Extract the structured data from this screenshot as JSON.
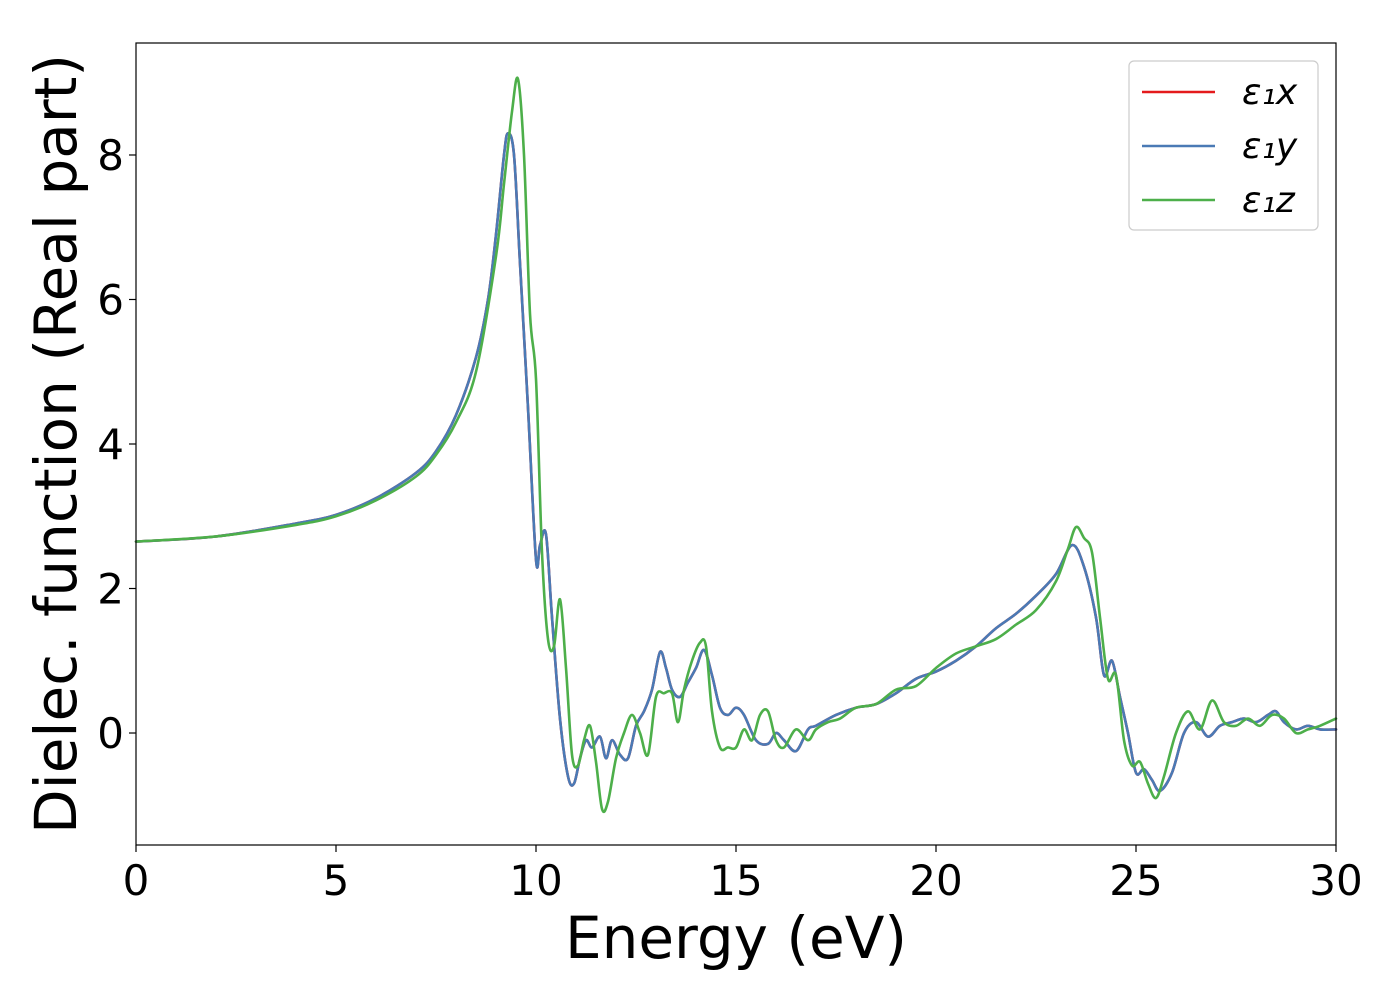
{
  "chart_data": {
    "type": "line",
    "title": "",
    "xlabel": "Energy (eV)",
    "ylabel": "Dielec. function (Real part)",
    "xlim": [
      0,
      30
    ],
    "ylim": [
      -1.55,
      9.55
    ],
    "xticks": [
      0,
      5,
      10,
      15,
      20,
      25,
      30
    ],
    "yticks": [
      0,
      2,
      4,
      6,
      8
    ],
    "grid": false,
    "legend_position": "top-right",
    "series": [
      {
        "name": "ε₁x",
        "color": "#e41a1c",
        "x": [
          0,
          2,
          4,
          5,
          6,
          7,
          7.5,
          8,
          8.5,
          8.8,
          9.0,
          9.2,
          9.3,
          9.45,
          9.6,
          9.8,
          10.0,
          10.1,
          10.25,
          10.4,
          10.6,
          10.8,
          10.95,
          11.1,
          11.25,
          11.4,
          11.6,
          11.75,
          11.9,
          12.1,
          12.3,
          12.5,
          12.7,
          12.9,
          13.1,
          13.25,
          13.4,
          13.6,
          13.8,
          14.0,
          14.2,
          14.4,
          14.6,
          14.8,
          15.0,
          15.2,
          15.5,
          15.8,
          16.0,
          16.2,
          16.5,
          16.8,
          17.0,
          17.5,
          18.0,
          18.5,
          19.0,
          19.5,
          20.0,
          20.5,
          21.0,
          21.5,
          22.0,
          22.5,
          23.0,
          23.4,
          23.7,
          24.0,
          24.2,
          24.4,
          24.6,
          24.8,
          25.0,
          25.2,
          25.4,
          25.6,
          25.9,
          26.2,
          26.5,
          26.8,
          27.1,
          27.4,
          27.7,
          28.0,
          28.3,
          28.5,
          28.7,
          29.0,
          29.3,
          29.6,
          30.0
        ],
        "y": [
          2.65,
          2.72,
          2.9,
          3.02,
          3.25,
          3.6,
          3.9,
          4.4,
          5.2,
          6.0,
          6.9,
          8.0,
          8.3,
          8.0,
          6.5,
          4.5,
          2.4,
          2.6,
          2.75,
          1.6,
          0.2,
          -0.6,
          -0.7,
          -0.35,
          -0.1,
          -0.2,
          -0.05,
          -0.35,
          -0.1,
          -0.3,
          -0.35,
          0.1,
          0.3,
          0.6,
          1.12,
          0.9,
          0.6,
          0.5,
          0.7,
          0.9,
          1.15,
          0.8,
          0.35,
          0.25,
          0.35,
          0.25,
          -0.1,
          -0.15,
          0.0,
          -0.1,
          -0.25,
          0.05,
          0.1,
          0.25,
          0.35,
          0.4,
          0.55,
          0.75,
          0.85,
          1.0,
          1.2,
          1.45,
          1.65,
          1.9,
          2.2,
          2.6,
          2.3,
          1.6,
          0.8,
          1.0,
          0.5,
          0.0,
          -0.55,
          -0.5,
          -0.65,
          -0.8,
          -0.55,
          0.0,
          0.15,
          -0.05,
          0.1,
          0.15,
          0.2,
          0.15,
          0.25,
          0.3,
          0.15,
          0.05,
          0.1,
          0.05,
          0.05
        ]
      },
      {
        "name": "ε₁y",
        "color": "#4a7ab5",
        "x": [
          0,
          2,
          4,
          5,
          6,
          7,
          7.5,
          8,
          8.5,
          8.8,
          9.0,
          9.2,
          9.3,
          9.45,
          9.6,
          9.8,
          10.0,
          10.1,
          10.25,
          10.4,
          10.6,
          10.8,
          10.95,
          11.1,
          11.25,
          11.4,
          11.6,
          11.75,
          11.9,
          12.1,
          12.3,
          12.5,
          12.7,
          12.9,
          13.1,
          13.25,
          13.4,
          13.6,
          13.8,
          14.0,
          14.2,
          14.4,
          14.6,
          14.8,
          15.0,
          15.2,
          15.5,
          15.8,
          16.0,
          16.2,
          16.5,
          16.8,
          17.0,
          17.5,
          18.0,
          18.5,
          19.0,
          19.5,
          20.0,
          20.5,
          21.0,
          21.5,
          22.0,
          22.5,
          23.0,
          23.4,
          23.7,
          24.0,
          24.2,
          24.4,
          24.6,
          24.8,
          25.0,
          25.2,
          25.4,
          25.6,
          25.9,
          26.2,
          26.5,
          26.8,
          27.1,
          27.4,
          27.7,
          28.0,
          28.3,
          28.5,
          28.7,
          29.0,
          29.3,
          29.6,
          30.0
        ],
        "y": [
          2.65,
          2.72,
          2.9,
          3.02,
          3.25,
          3.6,
          3.9,
          4.4,
          5.2,
          6.0,
          6.9,
          8.0,
          8.3,
          8.0,
          6.5,
          4.5,
          2.4,
          2.6,
          2.75,
          1.6,
          0.2,
          -0.6,
          -0.7,
          -0.35,
          -0.1,
          -0.2,
          -0.05,
          -0.35,
          -0.1,
          -0.3,
          -0.35,
          0.1,
          0.3,
          0.6,
          1.12,
          0.9,
          0.6,
          0.5,
          0.7,
          0.9,
          1.15,
          0.8,
          0.35,
          0.25,
          0.35,
          0.25,
          -0.1,
          -0.15,
          0.0,
          -0.1,
          -0.25,
          0.05,
          0.1,
          0.25,
          0.35,
          0.4,
          0.55,
          0.75,
          0.85,
          1.0,
          1.2,
          1.45,
          1.65,
          1.9,
          2.2,
          2.6,
          2.3,
          1.6,
          0.8,
          1.0,
          0.5,
          0.0,
          -0.55,
          -0.5,
          -0.65,
          -0.8,
          -0.55,
          0.0,
          0.15,
          -0.05,
          0.1,
          0.15,
          0.2,
          0.15,
          0.25,
          0.3,
          0.15,
          0.05,
          0.1,
          0.05,
          0.05
        ]
      },
      {
        "name": "ε₁z",
        "color": "#4daf4a",
        "x": [
          0,
          2,
          4,
          5,
          6,
          7,
          7.5,
          8,
          8.5,
          9.0,
          9.2,
          9.4,
          9.55,
          9.7,
          9.85,
          10.0,
          10.15,
          10.3,
          10.45,
          10.6,
          10.75,
          10.9,
          11.05,
          11.2,
          11.35,
          11.5,
          11.65,
          11.8,
          12.0,
          12.2,
          12.4,
          12.6,
          12.8,
          13.0,
          13.2,
          13.4,
          13.55,
          13.7,
          13.9,
          14.1,
          14.25,
          14.4,
          14.6,
          14.8,
          15.0,
          15.2,
          15.4,
          15.6,
          15.8,
          16.0,
          16.2,
          16.5,
          16.8,
          17.0,
          17.3,
          17.6,
          18.0,
          18.5,
          19.0,
          19.5,
          20.0,
          20.5,
          21.0,
          21.5,
          22.0,
          22.5,
          23.0,
          23.3,
          23.5,
          23.7,
          23.9,
          24.1,
          24.3,
          24.5,
          24.7,
          24.9,
          25.1,
          25.3,
          25.5,
          25.7,
          26.0,
          26.3,
          26.6,
          26.9,
          27.2,
          27.5,
          27.8,
          28.1,
          28.4,
          28.7,
          29.0,
          29.3,
          29.6,
          30.0
        ],
        "y": [
          2.65,
          2.72,
          2.88,
          3.0,
          3.22,
          3.55,
          3.85,
          4.3,
          5.0,
          6.6,
          7.6,
          8.6,
          9.05,
          8.0,
          5.8,
          4.9,
          2.5,
          1.3,
          1.2,
          1.85,
          0.9,
          -0.3,
          -0.45,
          -0.1,
          0.1,
          -0.4,
          -1.05,
          -0.95,
          -0.35,
          0.0,
          0.25,
          0.0,
          -0.3,
          0.5,
          0.55,
          0.55,
          0.15,
          0.6,
          1.0,
          1.25,
          1.2,
          0.3,
          -0.2,
          -0.2,
          -0.2,
          0.05,
          -0.1,
          0.25,
          0.3,
          -0.1,
          -0.2,
          0.05,
          -0.1,
          0.05,
          0.15,
          0.2,
          0.35,
          0.4,
          0.6,
          0.65,
          0.9,
          1.1,
          1.2,
          1.3,
          1.5,
          1.7,
          2.1,
          2.55,
          2.85,
          2.7,
          2.5,
          1.6,
          0.75,
          0.8,
          -0.1,
          -0.45,
          -0.4,
          -0.7,
          -0.9,
          -0.6,
          0.0,
          0.3,
          0.05,
          0.45,
          0.15,
          0.1,
          0.2,
          0.1,
          0.25,
          0.2,
          0.0,
          0.05,
          0.1,
          0.2
        ]
      }
    ]
  }
}
